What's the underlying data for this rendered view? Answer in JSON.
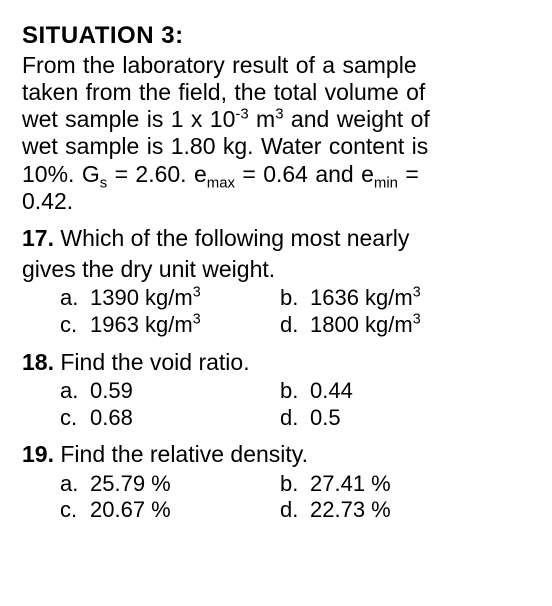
{
  "title": "SITUATION 3:",
  "paragraph": {
    "line1": "From the laboratory result of a sample",
    "line2": "taken from the field, the total volume of",
    "line3a": "wet sample is 1 x 10",
    "line3_exp": "-3",
    "line3b": " m",
    "line3_cube": "3",
    "line3c": " and weight of",
    "line4": "wet sample is 1.80 kg. Water content is",
    "line5a": "10%. G",
    "line5_s": "s",
    "line5b": " = 2.60. e",
    "line5_max": "max",
    "line5c": " = 0.64 and e",
    "line5_min": "min",
    "line5d": " =",
    "line6": "0.42."
  },
  "q17": {
    "num": "17.",
    "text": " Which of the following most nearly",
    "line2": "gives the dry unit weight.",
    "opts": {
      "a": {
        "l": "a.",
        "v": "1390 kg/m"
      },
      "b": {
        "l": "b.",
        "v": "1636 kg/m"
      },
      "c": {
        "l": "c.",
        "v": "1963 kg/m"
      },
      "d": {
        "l": "d.",
        "v": "1800 kg/m"
      },
      "cube": "3"
    }
  },
  "q18": {
    "num": "18.",
    "text": " Find the void ratio.",
    "opts": {
      "a": {
        "l": "a.",
        "v": "0.59"
      },
      "b": {
        "l": "b.",
        "v": "0.44"
      },
      "c": {
        "l": "c.",
        "v": "0.68"
      },
      "d": {
        "l": "d.",
        "v": "0.5"
      }
    }
  },
  "q19": {
    "num": "19.",
    "text": " Find the relative density.",
    "opts": {
      "a": {
        "l": "a.",
        "v": "25.79 %"
      },
      "b": {
        "l": "b.",
        "v": "27.41 %"
      },
      "c": {
        "l": "c.",
        "v": "20.67 %"
      },
      "d": {
        "l": "d.",
        "v": "22.73 %"
      }
    }
  }
}
